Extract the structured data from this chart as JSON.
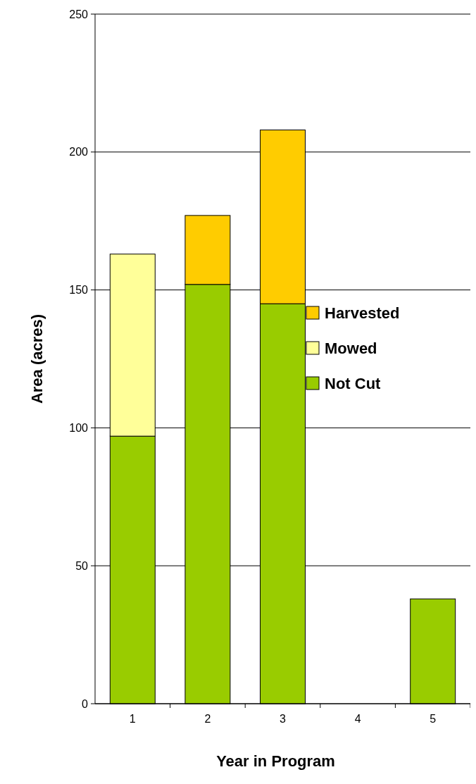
{
  "chart_data": {
    "type": "bar",
    "xlabel": "Year in Program",
    "ylabel": "Area (acres)",
    "categories": [
      "1",
      "2",
      "3",
      "4",
      "5"
    ],
    "stacked": true,
    "series": [
      {
        "name": "Not Cut",
        "color": "#99cc00",
        "values": [
          97,
          152,
          145,
          0,
          38
        ]
      },
      {
        "name": "Mowed",
        "color": "#ffff99",
        "values": [
          66,
          0,
          0,
          0,
          0
        ]
      },
      {
        "name": "Harvested",
        "color": "#ffcc00",
        "values": [
          0,
          25,
          63,
          0,
          0
        ]
      }
    ],
    "ylim": [
      0,
      250
    ],
    "yticks": [
      0,
      50,
      100,
      150,
      200,
      250
    ],
    "grid": "y",
    "legend": "right"
  }
}
